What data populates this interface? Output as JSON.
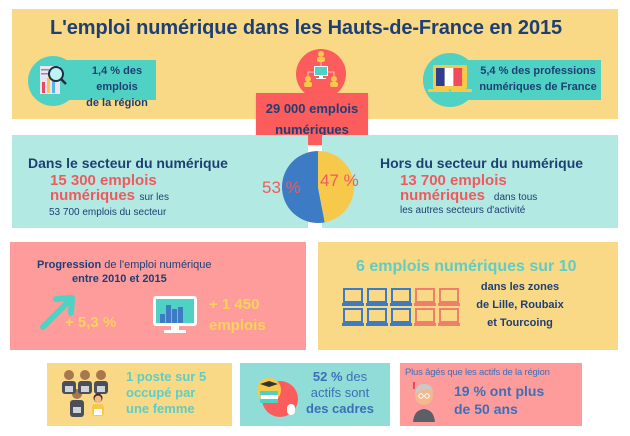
{
  "title": "L'emploi numérique dans les Hauts-de-France en 2015",
  "header": {
    "left_stat": {
      "line1": "1,4 % des emplois",
      "line2": "de la région",
      "icon": "magnifier-chart-icon"
    },
    "right_stat": {
      "line1": "5,4 % des professions",
      "line2": "numériques de France",
      "icon": "laptop-france-flag-icon"
    },
    "center_icon": "network-people-computer-icon",
    "total": {
      "line1": "29 000 emplois",
      "line2": "numériques"
    }
  },
  "sector": {
    "left": {
      "heading": "Dans le secteur du numérique",
      "highlight_line1": "15 300 emplois",
      "highlight_line2": "numériques",
      "suffix": "sur les",
      "line3": "53 700 emplois du secteur",
      "percent_label": "53 %"
    },
    "right": {
      "heading": "Hors du secteur du numérique",
      "highlight_line1": "13 700 emplois",
      "highlight_line2": "numériques",
      "suffix": "dans tous",
      "line3": "les autres secteurs d'activité",
      "percent_label": "47 %"
    }
  },
  "chart_data": {
    "type": "pie",
    "title": "",
    "slices": [
      {
        "label": "Dans le secteur du numérique",
        "value": 53,
        "color": "#3d7cc4"
      },
      {
        "label": "Hors du secteur du numérique",
        "value": 47,
        "color": "#f7c94a"
      }
    ],
    "data_labels": [
      "53 %",
      "47 %"
    ]
  },
  "progression": {
    "heading_bold": "Progression",
    "heading_rest": "de l'emploi numérique",
    "heading_line2": "entre 2010 et 2015",
    "percent": "+ 5,3 %",
    "count_line1": "+ 1 450",
    "count_line2": "emplois",
    "icons": [
      "arrow-up-right-icon",
      "monitor-bar-chart-icon"
    ]
  },
  "zones": {
    "heading": "6 emplois numériques sur 10",
    "line1": "dans les zones",
    "line2": "de Lille, Roubaix",
    "line3": "et Tourcoing",
    "laptops_highlighted": 6,
    "laptops_total": 10,
    "colors": {
      "highlight": "#3d7cc4",
      "other": "#ef7e6b"
    }
  },
  "femme": {
    "line1": "1 poste sur 5",
    "line2": "occupé par",
    "line3": "une femme",
    "icon": "workers-group-icon"
  },
  "cadres": {
    "bold1": "52 %",
    "rest1": " des",
    "line2": "actifs sont",
    "line3": "des cadres",
    "icon": "graduation-books-icon"
  },
  "age": {
    "heading": "Plus âgés que les actifs de la région",
    "line1": "19 % ont plus",
    "line2": "de 50 ans",
    "icon": "senior-person-icon"
  },
  "colors": {
    "yellow": "#f9d985",
    "teal_light": "#b3e9e3",
    "teal": "#4fd1c4",
    "pink": "#fe9c9c",
    "red": "#fd5c5c",
    "navy": "#1e3f73",
    "blue": "#3d7cc4",
    "gold": "#f7c94a"
  }
}
